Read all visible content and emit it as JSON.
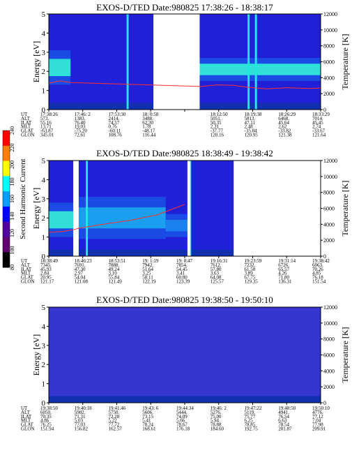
{
  "colorbar": {
    "label": "Second Harmonic Current",
    "ticks": [
      "240",
      "220",
      "200",
      "180",
      "160",
      "140",
      "120",
      "100",
      "80"
    ],
    "colors": [
      "#ff0000",
      "#ff7f00",
      "#ffff00",
      "#00ffff",
      "#00a0ff",
      "#0000ff",
      "#5500a0",
      "#600070",
      "#000000"
    ]
  },
  "chart_data": [
    {
      "type": "heatmap",
      "title": "EXOS-D/TED   Date:980825   17:38:26 - 18:38:17",
      "ylabel": "Energy [eV]",
      "y2label": "Temperature [K]",
      "ylim": [
        0,
        5
      ],
      "y2lim": [
        0,
        12000
      ],
      "yticks": [
        "0",
        "1",
        "2",
        "3",
        "4",
        "5"
      ],
      "y2ticks": [
        "0",
        "2000",
        "4000",
        "6000",
        "8000",
        "10000",
        "12000"
      ],
      "background": "#2020d8",
      "data_gaps": [
        [
          0.385,
          0.555
        ]
      ],
      "vertical_spikes": [
        0.29,
        0.735,
        0.762
      ],
      "bands": [
        {
          "x": [
            0.0,
            0.08
          ],
          "center": 2.2,
          "width": 0.9,
          "color": "#30e0d8"
        },
        {
          "x": [
            0.55,
            1.0
          ],
          "center": 2.1,
          "width": 0.6,
          "color": "#30e0d8"
        }
      ],
      "temperature": [
        [
          0.0,
          3300
        ],
        [
          0.04,
          3600
        ],
        [
          0.08,
          3400
        ],
        [
          0.56,
          2900
        ],
        [
          0.62,
          3100
        ],
        [
          0.68,
          3050
        ],
        [
          0.73,
          2800
        ],
        [
          0.8,
          2600
        ],
        [
          0.88,
          2750
        ],
        [
          0.95,
          2650
        ],
        [
          1.0,
          2700
        ]
      ],
      "table_rows": [
        {
          "label": "UT",
          "values": [
            "17:38:26",
            "17:46: 2",
            "17:53:30",
            "18: 0:58",
            "",
            "18:12:50",
            "18:19:38",
            "18:26:29",
            "18:33:29"
          ]
        },
        {
          "label": "ALT",
          "values": [
            "573.",
            "1383.",
            "2414.",
            "3488.",
            "",
            "5051.",
            "5813.",
            "6468.",
            "7014."
          ]
        },
        {
          "label": "ILAT",
          "values": [
            "55.16",
            "76.40",
            "74.57",
            "62.30",
            "",
            "50.35",
            "47.11",
            "45.64",
            "45.45"
          ]
        },
        {
          "label": "MLT",
          "values": [
            "13.71",
            "19.03",
            "0.76",
            "1.78",
            "",
            "2.31",
            "2.48",
            "2.62",
            "2.74"
          ]
        },
        {
          "label": "GLAT",
          "values": [
            "-63.87",
            "-75.20",
            "-60.11",
            "-48.17",
            "",
            "-37.77",
            "-35.04",
            "-33.82",
            "-33.67"
          ]
        },
        {
          "label": "GLON",
          "values": [
            "345.01",
            "72.61",
            "108.76",
            "116.44",
            "",
            "120.16",
            "120.95",
            "121.38",
            "121.64"
          ]
        }
      ]
    },
    {
      "type": "heatmap",
      "title": "EXOS-D/TED   Date:980825   18:38:49 - 19:38:42",
      "ylabel": "Energy [eV]",
      "y2label": "Temperature [K]",
      "ylim": [
        0,
        5
      ],
      "y2lim": [
        0,
        12000
      ],
      "yticks": [
        "0",
        "1",
        "2",
        "3",
        "4",
        "5"
      ],
      "y2ticks": [
        "0",
        "2000",
        "4000",
        "6000",
        "8000",
        "10000",
        "12000"
      ],
      "background": "#2020d8",
      "data_gaps": [
        [
          0.09,
          0.11
        ],
        [
          0.51,
          0.52
        ],
        [
          0.68,
          1.0
        ]
      ],
      "vertical_spikes": [
        0.14,
        0.52
      ],
      "bands": [
        {
          "x": [
            0.0,
            0.09
          ],
          "center": 1.9,
          "width": 0.9,
          "color": "#30e0d8"
        },
        {
          "x": [
            0.11,
            0.43
          ],
          "center": 2.0,
          "width": 1.1,
          "color": "#1a9ef0"
        },
        {
          "x": [
            0.43,
            0.52
          ],
          "center": 1.6,
          "width": 0.6,
          "color": "#1a80f0"
        }
      ],
      "temperature": [
        [
          0.0,
          3000
        ],
        [
          0.05,
          3100
        ],
        [
          0.09,
          3300
        ],
        [
          0.11,
          3500
        ],
        [
          0.2,
          4000
        ],
        [
          0.3,
          4500
        ],
        [
          0.4,
          5200
        ],
        [
          0.5,
          6500
        ]
      ],
      "table_rows": [
        {
          "label": "UT",
          "values": [
            "18:38:49",
            "18:46:23",
            "18:53:51",
            "19: 1:19",
            "19: 8:47",
            "19:16:31",
            "19:23:59",
            "19:31:14",
            "19:38:42"
          ]
        },
        {
          "label": "ALT",
          "values": [
            "7345.",
            "7691.",
            "7888.",
            "7942.",
            "7854.",
            "7612.",
            "7232.",
            "6726.",
            "6063."
          ]
        },
        {
          "label": "ILAT",
          "values": [
            "45.93",
            "47.30",
            "49.24",
            "51.64",
            "54.45",
            "57.80",
            "61.50",
            "65.57",
            "70.26"
          ]
        },
        {
          "label": "MLT",
          "values": [
            "2.84",
            "2.97",
            "3.10",
            "3.25",
            "3.41",
            "3.63",
            "3.89",
            "4.26",
            "4.85"
          ]
        },
        {
          "label": "GLAT",
          "values": [
            "20.95",
            "54.04",
            "55.84",
            "58.11",
            "60.80",
            "64.08",
            "67.75",
            "71.80",
            "76.18"
          ]
        },
        {
          "label": "GLON",
          "values": [
            "121.17",
            "121.08",
            "121.49",
            "122.19",
            "123.39",
            "125.57",
            "129.35",
            "136.31",
            "151.54"
          ]
        }
      ]
    },
    {
      "type": "heatmap",
      "title": "EXOS-D/TED   Date:980825   19:38:50 - 19:50:10",
      "ylabel": "Energy [eV]",
      "y2label": "Temperature [K]",
      "ylim": [
        0,
        5
      ],
      "y2lim": [
        0,
        12000
      ],
      "yticks": [
        "0",
        "1",
        "2",
        "3",
        "4",
        "5"
      ],
      "y2ticks": [
        "0",
        "2000",
        "4000",
        "6000",
        "8000",
        "10000",
        "12000"
      ],
      "background": "#3535d0",
      "data_gaps": [],
      "vertical_spikes": [],
      "bands": [],
      "temperature": [],
      "table_rows": [
        {
          "label": "UT",
          "values": [
            "19:38:50",
            "19:40:18",
            "19:41:46",
            "19:43: 6",
            "19:44:34",
            "19:46: 2",
            "19:47:22",
            "19:48:50",
            "19:50:10"
          ]
        },
        {
          "label": "ALT",
          "values": [
            "6050.",
            "5902.",
            "5750.",
            "5606.",
            "5444.",
            "5276.",
            "5119.",
            "4941.",
            "4776."
          ]
        },
        {
          "label": "ILAT",
          "values": [
            "70.35",
            "71.31",
            "72.28",
            "73.15",
            "74.09",
            "75.00",
            "75.77",
            "76.54",
            "77.12"
          ]
        },
        {
          "label": "MLT",
          "values": [
            "4.86",
            "5.03",
            "5.22",
            "5.41",
            "5.66",
            "5.94",
            "6.25",
            "6.63",
            "7.04"
          ]
        },
        {
          "label": "GLAT",
          "values": [
            "76.25",
            "77.03",
            "77.72",
            "78.24",
            "78.67",
            "78.88",
            "78.85",
            "78.54",
            "77.98"
          ]
        },
        {
          "label": "GLON",
          "values": [
            "151.94",
            "156.82",
            "162.57",
            "168.61",
            "176.18",
            "184.60",
            "192.75",
            "201.87",
            "209.91"
          ]
        }
      ]
    }
  ]
}
